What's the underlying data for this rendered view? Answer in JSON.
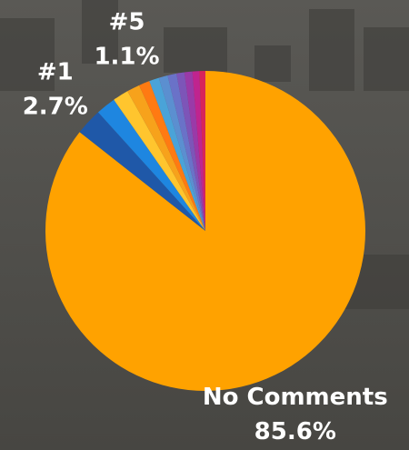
{
  "chart_data": {
    "type": "pie",
    "categories": [
      "No Comments",
      "#1",
      null,
      null,
      null,
      "#5",
      null,
      null,
      null,
      null,
      null,
      null,
      null
    ],
    "values": [
      85.6,
      2.7,
      2.0,
      1.6,
      1.3,
      1.1,
      1.0,
      0.9,
      0.9,
      0.8,
      0.8,
      0.7,
      0.6
    ],
    "value_labels": [
      "85.6%",
      "2.7%",
      null,
      null,
      null,
      "1.1%",
      null,
      null,
      null,
      null,
      null,
      null,
      null
    ],
    "colors": [
      "#ffa200",
      "#1f58a8",
      "#1e86e0",
      "#ffc52e",
      "#f7a21b",
      "#ff7a12",
      "#4aa3d8",
      "#5b8fd0",
      "#6a72c8",
      "#7d55b8",
      "#9a3aa8",
      "#c0248f",
      "#d8245a"
    ]
  }
}
